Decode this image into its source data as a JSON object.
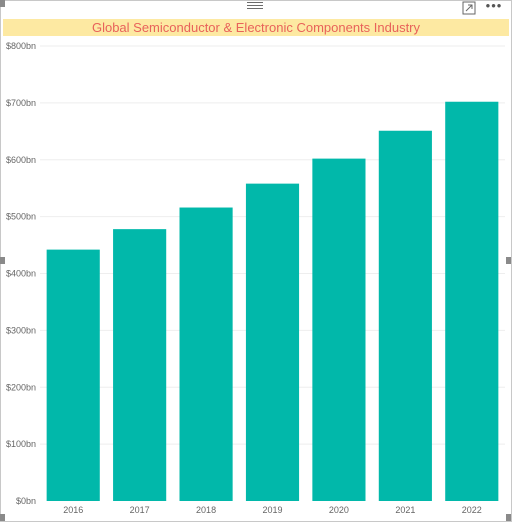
{
  "header": {
    "more_icon": "more-options-icon",
    "focus_icon": "focus-mode-icon",
    "drag_icon": "drag-handle-icon"
  },
  "chart_data": {
    "type": "bar",
    "title": "Global Semiconductor & Electronic Components Industry",
    "categories": [
      "2016",
      "2017",
      "2018",
      "2019",
      "2020",
      "2021",
      "2022"
    ],
    "values": [
      442,
      478,
      516,
      558,
      602,
      651,
      702
    ],
    "unit": "bn",
    "ylim": [
      0,
      800
    ],
    "yticks": [
      "$0bn",
      "$100bn",
      "$200bn",
      "$300bn",
      "$400bn",
      "$500bn",
      "$600bn",
      "$700bn",
      "$800bn"
    ],
    "xlabel": "",
    "ylabel": "",
    "grid": true,
    "bar_color": "#01b8aa",
    "title_color": "#e8625a",
    "title_background": "#fde9a2"
  }
}
